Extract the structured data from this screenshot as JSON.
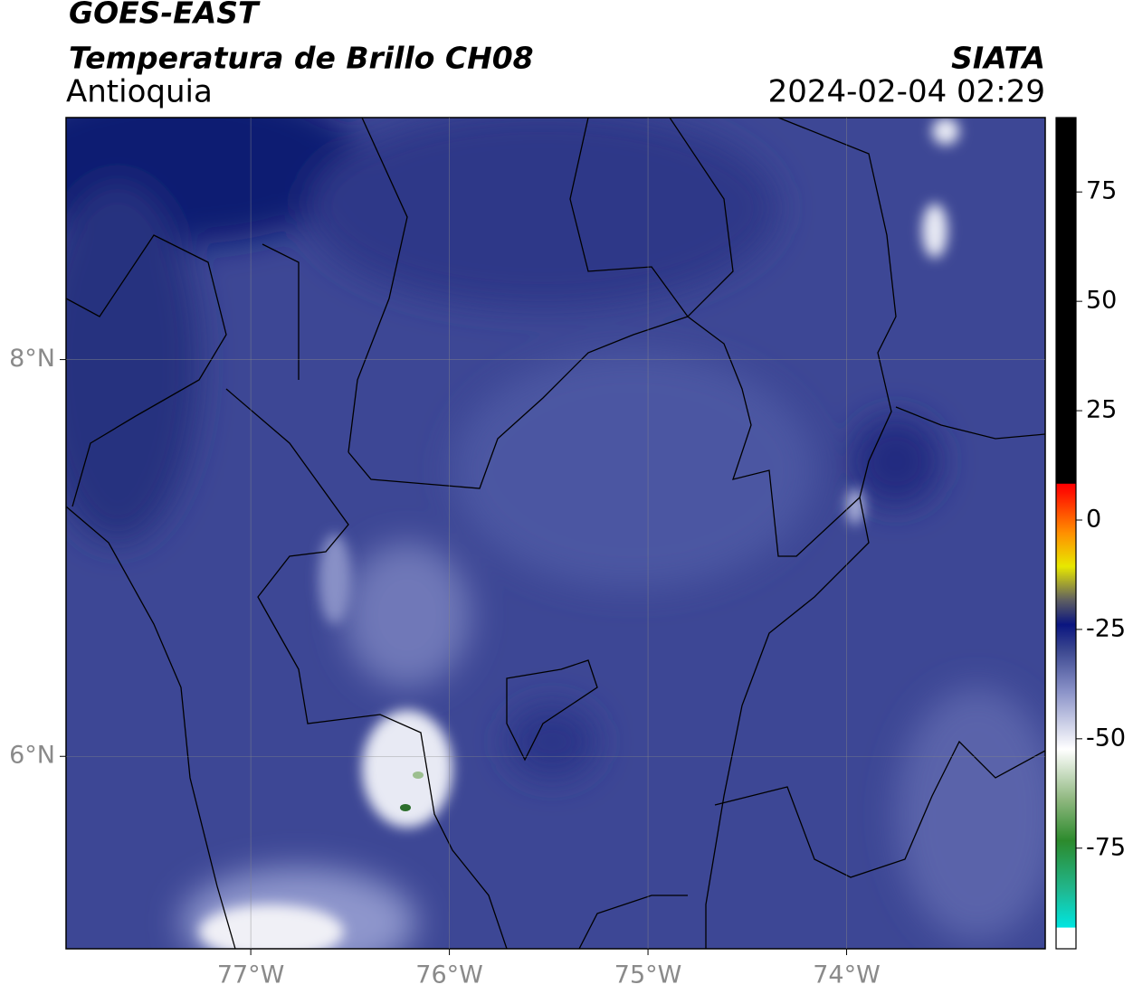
{
  "header": {
    "title": "GOES-EAST",
    "subtitle": "Temperatura de Brillo CH08",
    "region": "Antioquia",
    "source": "SIATA",
    "datetime": "2024-02-04 02:29"
  },
  "map": {
    "lonlim": [
      -77.93,
      -73.0
    ],
    "latlim": [
      5.03,
      9.22
    ],
    "lon_ticks": [
      {
        "value": -77,
        "label": "77°W"
      },
      {
        "value": -76,
        "label": "76°W"
      },
      {
        "value": -75,
        "label": "75°W"
      },
      {
        "value": -74,
        "label": "74°W"
      }
    ],
    "lat_ticks": [
      {
        "value": 8,
        "label": "8°N"
      },
      {
        "value": 6,
        "label": "6°N"
      }
    ]
  },
  "colorbar": {
    "lim": [
      -98,
      92
    ],
    "ticks": [
      75,
      50,
      25,
      0,
      -25,
      -50,
      -75
    ]
  }
}
